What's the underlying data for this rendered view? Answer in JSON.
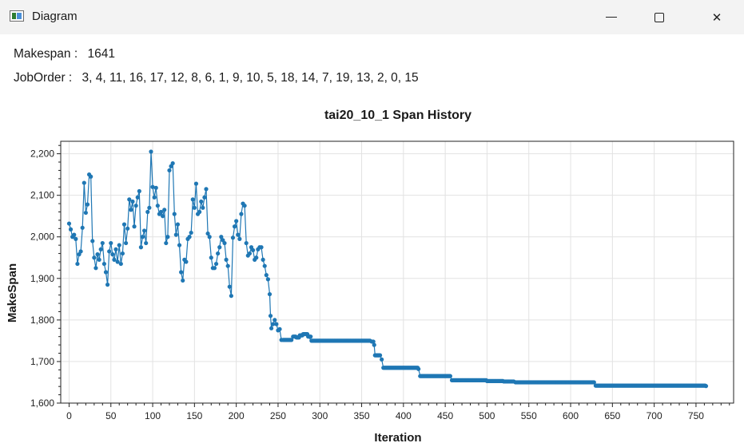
{
  "window": {
    "title": "Diagram",
    "icon": "app-window-icon",
    "controls": [
      "minimize",
      "maximize",
      "close"
    ],
    "close_glyph": "✕"
  },
  "info": {
    "makespan_label": "Makespan :",
    "makespan_value": "1641",
    "joborder_label": "JobOrder :",
    "joborder_value": "3, 4, 11, 16, 17, 12, 8, 6, 1, 9, 10, 5, 18, 14, 7, 19, 13, 2, 0, 15"
  },
  "chart_data": {
    "type": "line",
    "title": "tai20_10_1 Span History",
    "xlabel": "Iteration",
    "ylabel": "MakeSpan",
    "xlim": [
      -10,
      795
    ],
    "ylim": [
      1600,
      2230
    ],
    "xticks": [
      0,
      50,
      100,
      150,
      200,
      250,
      300,
      350,
      400,
      450,
      500,
      550,
      600,
      650,
      700,
      750
    ],
    "xtick_labels": [
      "0",
      "50",
      "100",
      "150",
      "200",
      "250",
      "300",
      "350",
      "400",
      "450",
      "500",
      "550",
      "600",
      "650",
      "700",
      "750"
    ],
    "yticks": [
      1600,
      1700,
      1800,
      1900,
      2000,
      2100,
      2200
    ],
    "ytick_labels": [
      "1,600",
      "1,700",
      "1,800",
      "1,900",
      "2,000",
      "2,100",
      "2,200"
    ],
    "grid": true,
    "color": "#1f77b4",
    "series": [
      {
        "markers": true,
        "points": [
          [
            0,
            2032
          ],
          [
            2,
            2018
          ],
          [
            4,
            2000
          ],
          [
            6,
            2005
          ],
          [
            8,
            1995
          ],
          [
            10,
            1935
          ],
          [
            12,
            1958
          ],
          [
            14,
            1965
          ],
          [
            16,
            2022
          ],
          [
            18,
            2130
          ],
          [
            20,
            2058
          ],
          [
            22,
            2078
          ],
          [
            24,
            2150
          ],
          [
            26,
            2145
          ],
          [
            28,
            1990
          ],
          [
            30,
            1950
          ],
          [
            32,
            1925
          ],
          [
            34,
            1958
          ],
          [
            36,
            1945
          ],
          [
            38,
            1970
          ],
          [
            40,
            1985
          ],
          [
            42,
            1935
          ],
          [
            44,
            1915
          ],
          [
            46,
            1885
          ],
          [
            48,
            1965
          ],
          [
            50,
            1985
          ],
          [
            52,
            1958
          ],
          [
            54,
            1945
          ],
          [
            56,
            1970
          ],
          [
            58,
            1940
          ],
          [
            60,
            1980
          ],
          [
            62,
            1935
          ],
          [
            64,
            1960
          ],
          [
            66,
            2030
          ],
          [
            68,
            1985
          ],
          [
            70,
            2020
          ],
          [
            72,
            2090
          ],
          [
            74,
            2065
          ],
          [
            76,
            2085
          ],
          [
            78,
            2025
          ],
          [
            80,
            2075
          ],
          [
            82,
            2095
          ],
          [
            84,
            2110
          ],
          [
            86,
            1975
          ],
          [
            88,
            2000
          ],
          [
            90,
            2015
          ],
          [
            92,
            1985
          ],
          [
            94,
            2060
          ],
          [
            96,
            2070
          ],
          [
            98,
            2205
          ],
          [
            100,
            2120
          ],
          [
            102,
            2095
          ],
          [
            104,
            2118
          ],
          [
            106,
            2075
          ],
          [
            108,
            2055
          ],
          [
            110,
            2060
          ],
          [
            112,
            2050
          ],
          [
            114,
            2065
          ],
          [
            116,
            1985
          ],
          [
            118,
            2000
          ],
          [
            120,
            2160
          ],
          [
            122,
            2170
          ],
          [
            124,
            2177
          ],
          [
            126,
            2055
          ],
          [
            128,
            2005
          ],
          [
            130,
            2030
          ],
          [
            132,
            1980
          ],
          [
            134,
            1915
          ],
          [
            136,
            1895
          ],
          [
            138,
            1945
          ],
          [
            140,
            1940
          ],
          [
            142,
            1995
          ],
          [
            144,
            2000
          ],
          [
            146,
            2010
          ],
          [
            148,
            2090
          ],
          [
            150,
            2070
          ],
          [
            152,
            2128
          ],
          [
            154,
            2055
          ],
          [
            156,
            2060
          ],
          [
            158,
            2085
          ],
          [
            160,
            2070
          ],
          [
            162,
            2095
          ],
          [
            164,
            2115
          ],
          [
            166,
            2008
          ],
          [
            168,
            2000
          ],
          [
            170,
            1950
          ],
          [
            172,
            1925
          ],
          [
            174,
            1925
          ],
          [
            176,
            1935
          ],
          [
            178,
            1960
          ],
          [
            180,
            1975
          ],
          [
            182,
            2000
          ],
          [
            184,
            1992
          ],
          [
            186,
            1985
          ],
          [
            188,
            1945
          ],
          [
            190,
            1930
          ],
          [
            192,
            1880
          ],
          [
            194,
            1858
          ],
          [
            196,
            1998
          ],
          [
            198,
            2025
          ],
          [
            200,
            2038
          ],
          [
            202,
            2005
          ],
          [
            204,
            1995
          ],
          [
            206,
            2055
          ],
          [
            208,
            2080
          ],
          [
            210,
            2075
          ],
          [
            212,
            1985
          ],
          [
            214,
            1955
          ],
          [
            216,
            1960
          ],
          [
            218,
            1975
          ],
          [
            220,
            1968
          ],
          [
            222,
            1945
          ],
          [
            224,
            1950
          ],
          [
            226,
            1970
          ],
          [
            228,
            1975
          ],
          [
            230,
            1975
          ],
          [
            232,
            1945
          ],
          [
            234,
            1930
          ],
          [
            236,
            1908
          ],
          [
            238,
            1898
          ],
          [
            240,
            1862
          ],
          [
            241,
            1810
          ],
          [
            242,
            1780
          ],
          [
            244,
            1790
          ],
          [
            246,
            1800
          ],
          [
            248,
            1790
          ],
          [
            250,
            1775
          ],
          [
            252,
            1778
          ],
          [
            254,
            1752
          ],
          [
            256,
            1752
          ],
          [
            262,
            1752
          ],
          [
            266,
            1752
          ],
          [
            268,
            1760
          ],
          [
            272,
            1758
          ],
          [
            276,
            1763
          ],
          [
            280,
            1766
          ],
          [
            286,
            1760
          ],
          [
            290,
            1750
          ],
          [
            300,
            1750
          ],
          [
            320,
            1750
          ],
          [
            340,
            1750
          ],
          [
            360,
            1750
          ],
          [
            362,
            1748
          ],
          [
            365,
            1740
          ],
          [
            366,
            1715
          ],
          [
            372,
            1715
          ],
          [
            374,
            1705
          ],
          [
            376,
            1685
          ],
          [
            390,
            1685
          ],
          [
            410,
            1685
          ],
          [
            418,
            1682
          ],
          [
            420,
            1665
          ],
          [
            440,
            1665
          ],
          [
            456,
            1665
          ],
          [
            458,
            1655
          ],
          [
            470,
            1655
          ],
          [
            480,
            1655
          ],
          [
            500,
            1653
          ],
          [
            520,
            1652
          ],
          [
            532,
            1652
          ],
          [
            534,
            1650
          ],
          [
            560,
            1650
          ],
          [
            600,
            1650
          ],
          [
            628,
            1650
          ],
          [
            630,
            1642
          ],
          [
            660,
            1642
          ],
          [
            700,
            1642
          ],
          [
            740,
            1642
          ],
          [
            762,
            1641
          ]
        ]
      }
    ]
  }
}
